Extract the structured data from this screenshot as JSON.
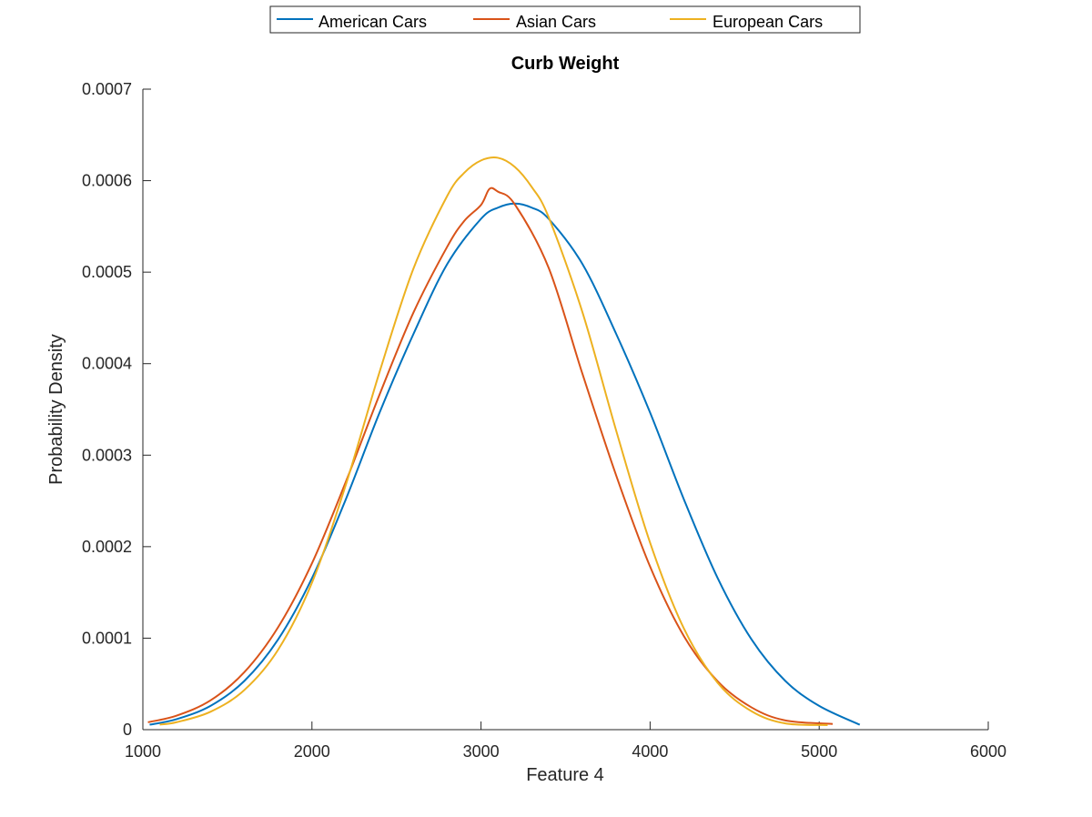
{
  "chart_data": {
    "type": "line",
    "title": "Curb Weight",
    "xlabel": "Feature 4",
    "ylabel": "Probability Density",
    "xlim": [
      1000,
      6000
    ],
    "ylim": [
      0,
      0.0007
    ],
    "xticks": [
      1000,
      2000,
      3000,
      4000,
      5000,
      6000
    ],
    "xtick_labels": [
      "1000",
      "2000",
      "3000",
      "4000",
      "5000",
      "6000"
    ],
    "yticks": [
      0,
      0.0001,
      0.0002,
      0.0003,
      0.0004,
      0.0005,
      0.0006,
      0.0007
    ],
    "ytick_labels": [
      "0",
      "0.0001",
      "0.0002",
      "0.0003",
      "0.0004",
      "0.0005",
      "0.0006",
      "0.0007"
    ],
    "grid": false,
    "legend_position": "top-center",
    "series": [
      {
        "name": "American Cars",
        "color": "#0072BD",
        "x": [
          1040,
          1200,
          1400,
          1600,
          1800,
          2000,
          2200,
          2400,
          2600,
          2800,
          3000,
          3100,
          3200,
          3300,
          3400,
          3600,
          3800,
          4000,
          4200,
          4400,
          4600,
          4800,
          5000,
          5240
        ],
        "y": [
          5.4e-06,
          1.15e-05,
          2.6e-05,
          5.32e-05,
          9.86e-05,
          0.0001655,
          0.0002516,
          0.0003465,
          0.0004323,
          0.0005088,
          0.0005583,
          0.0005705,
          0.000575,
          0.0005705,
          0.0005583,
          0.0005088,
          0.0004323,
          0.0003465,
          0.0002516,
          0.0001655,
          9.86e-05,
          5.32e-05,
          2.6e-05,
          5.4e-06
        ]
      },
      {
        "name": "Asian Cars",
        "color": "#D95319",
        "x": [
          1030,
          1200,
          1400,
          1600,
          1800,
          2000,
          2200,
          2400,
          2600,
          2800,
          2900,
          3000,
          3050,
          3100,
          3200,
          3400,
          3600,
          3800,
          4000,
          4200,
          4400,
          4600,
          4800,
          5080
        ],
        "y": [
          8.1e-06,
          1.54e-05,
          3.2e-05,
          6.28e-05,
          0.000112,
          0.0001818,
          0.0002707,
          0.0003663,
          0.0004557,
          0.0005278,
          0.0005558,
          0.0005735,
          0.000591,
          0.000588,
          0.000574,
          0.0005047,
          0.0003888,
          0.0002775,
          0.0001782,
          0.0001022,
          5.28e-05,
          2.43e-05,
          1.01e-05,
          6.2e-06
        ]
      },
      {
        "name": "European Cars",
        "color": "#EDB120",
        "x": [
          1100,
          1200,
          1400,
          1600,
          1800,
          2000,
          2200,
          2400,
          2600,
          2800,
          2900,
          3000,
          3100,
          3200,
          3300,
          3400,
          3600,
          3800,
          4000,
          4200,
          4400,
          4600,
          4800,
          5050
        ],
        "y": [
          5.5e-06,
          8.2e-06,
          1.96e-05,
          4.33e-05,
          8.74e-05,
          0.0001606,
          0.0002674,
          0.000391,
          0.0005037,
          0.0005833,
          0.0006084,
          0.0006221,
          0.000625,
          0.000615,
          0.000593,
          0.00056,
          0.0004561,
          0.0003264,
          0.0002043,
          0.0001105,
          5.11e-05,
          2.01e-05,
          6.8e-06,
          5e-06
        ]
      }
    ]
  }
}
